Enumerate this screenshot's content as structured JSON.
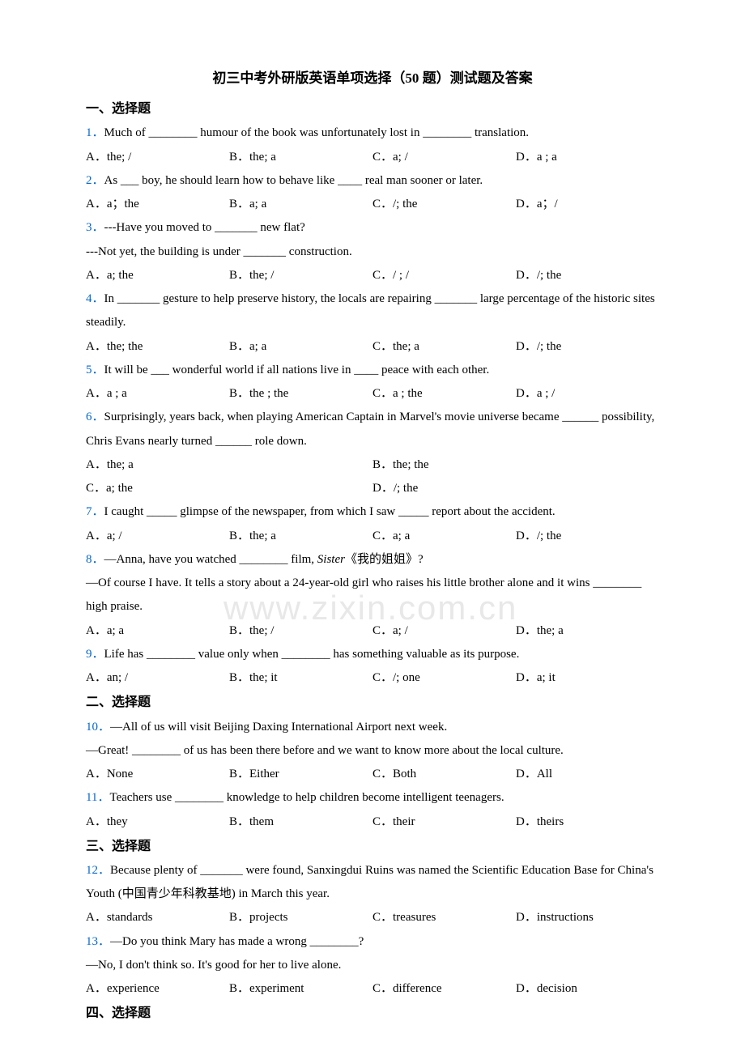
{
  "title": "初三中考外研版英语单项选择（50 题）测试题及答案",
  "watermark": "www.zixin.com.cn",
  "sections": {
    "s1": "一、选择题",
    "s2": "二、选择题",
    "s3": "三、选择题",
    "s4": "四、选择题"
  },
  "q1": {
    "num": "1．",
    "text": "Much of ________ humour of the book was unfortunately lost in ________ translation.",
    "a": "A．the; /",
    "b": "B．the; a",
    "c": "C．a; /",
    "d": "D．a ; a"
  },
  "q2": {
    "num": "2．",
    "text": "As ___ boy, he should learn how to behave like ____ real man sooner or later.",
    "a": "A．a；the",
    "b": "B．a; a",
    "c": "C．/; the",
    "d": "D．a；/"
  },
  "q3": {
    "num": "3．",
    "text1": "---Have you moved to _______ new flat?",
    "text2": " ---Not yet, the building is under _______ construction.",
    "a": "A．a; the",
    "b": "B．the; /",
    "c": "C．/ ; /",
    "d": "D．/; the"
  },
  "q4": {
    "num": "4．",
    "text": "In _______ gesture to help preserve history, the locals are repairing _______ large percentage of the historic sites steadily.",
    "a": "A．the; the",
    "b": "B．a; a",
    "c": "C．the; a",
    "d": "D．/; the"
  },
  "q5": {
    "num": "5．",
    "text": "It will be ___ wonderful world if all nations live in ____ peace with each other.",
    "a": "A．a ; a",
    "b": "B．the ; the",
    "c": "C．a ; the",
    "d": "D．a ;  /"
  },
  "q6": {
    "num": "6．",
    "text": "Surprisingly, years back, when playing American Captain in Marvel's movie universe became ______ possibility, Chris Evans nearly turned ______ role down.",
    "a": "A．the; a",
    "b": "B．the; the",
    "c": "C．a; the",
    "d": "D．/; the"
  },
  "q7": {
    "num": "7．",
    "text": "I caught _____ glimpse of the newspaper, from which I saw _____ report about the accident.",
    "a": "A．a; /",
    "b": "B．the; a",
    "c": "C．a; a",
    "d": "D．/; the"
  },
  "q8": {
    "num": "8．",
    "text1a": "—Anna, have you watched ________ film, ",
    "text1b": "Sister",
    "text1c": "《我的姐姐》?",
    "text2": "—Of course I have. It tells a story about a 24-year-old girl who raises his little brother alone and it wins ________ high praise.",
    "a": "A．a; a",
    "b": "B．the; /",
    "c": "C．a; /",
    "d": "D．the; a"
  },
  "q9": {
    "num": "9．",
    "text": "Life has ________ value only when ________ has something valuable as its purpose.",
    "a": "A．an; /",
    "b": "B．the; it",
    "c": "C．/; one",
    "d": "D．a; it"
  },
  "q10": {
    "num": "10．",
    "text1": "—All of us will visit Beijing Daxing International Airport next week.",
    "text2": "—Great! ________ of us has been there before and we want to know more about the local culture.",
    "a": "A．None",
    "b": "B．Either",
    "c": "C．Both",
    "d": "D．All"
  },
  "q11": {
    "num": "11．",
    "text": "Teachers use ________ knowledge to help children become intelligent teenagers.",
    "a": "A．they",
    "b": "B．them",
    "c": "C．their",
    "d": "D．theirs"
  },
  "q12": {
    "num": "12．",
    "text": "Because plenty of _______ were found, Sanxingdui Ruins was named the Scientific Education Base for China's Youth (中国青少年科教基地) in March this year.",
    "a": "A．standards",
    "b": "B．projects",
    "c": "C．treasures",
    "d": "D．instructions"
  },
  "q13": {
    "num": "13．",
    "text1": "—Do you think Mary has made a wrong ________?",
    "text2": "—No, I don't think so. It's good for her to live alone.",
    "a": "A．experience",
    "b": "B．experiment",
    "c": "C．difference",
    "d": "D．decision"
  }
}
